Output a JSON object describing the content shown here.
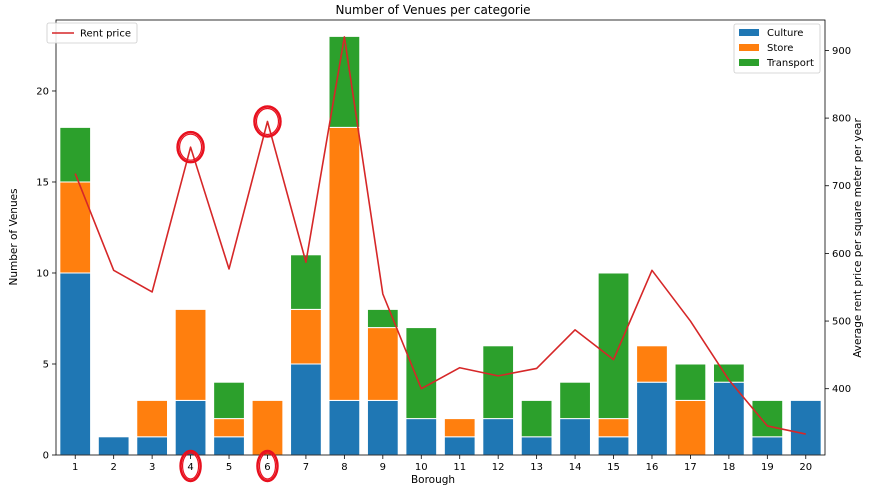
{
  "chart_data": {
    "type": "bar",
    "stacked": true,
    "title": "Number of Venues per categorie",
    "xlabel": "Borough",
    "ylabel": "Number of Venues",
    "y2label": "Average rent price per square meter per year",
    "categories": [
      "1",
      "2",
      "3",
      "4",
      "5",
      "6",
      "7",
      "8",
      "9",
      "10",
      "11",
      "12",
      "13",
      "14",
      "15",
      "16",
      "17",
      "18",
      "19",
      "20"
    ],
    "ylim": [
      0,
      23.9
    ],
    "yticks": [
      0,
      5,
      10,
      15,
      20
    ],
    "y2lim": [
      302,
      945
    ],
    "y2ticks": [
      400,
      500,
      600,
      700,
      800,
      900
    ],
    "series": [
      {
        "name": "Culture",
        "color": "#1f77b4",
        "values": [
          10,
          1,
          1,
          3,
          1,
          0,
          5,
          3,
          3,
          2,
          1,
          2,
          1,
          2,
          1,
          4,
          0,
          4,
          1,
          3
        ]
      },
      {
        "name": "Store",
        "color": "#ff7f0e",
        "values": [
          5,
          0,
          2,
          5,
          1,
          3,
          3,
          15,
          4,
          0,
          1,
          0,
          0,
          0,
          1,
          2,
          3,
          0,
          0,
          0
        ]
      },
      {
        "name": "Transport",
        "color": "#2ca02c",
        "values": [
          3,
          0,
          0,
          0,
          2,
          0,
          3,
          5,
          1,
          5,
          0,
          4,
          2,
          2,
          8,
          0,
          2,
          1,
          2,
          0
        ]
      }
    ],
    "line_series": {
      "name": "Rent price",
      "color": "#d62728",
      "axis": "right",
      "values": [
        718,
        575,
        543,
        757,
        577,
        795,
        587,
        920,
        540,
        400,
        431,
        419,
        430,
        487,
        443,
        575,
        500,
        413,
        345,
        333
      ]
    },
    "legend_bars_position": "upper right",
    "legend_line_position": "upper left",
    "highlighted_categories": [
      "4",
      "6"
    ],
    "highlight_color": "#e8101e",
    "grid": false
  }
}
